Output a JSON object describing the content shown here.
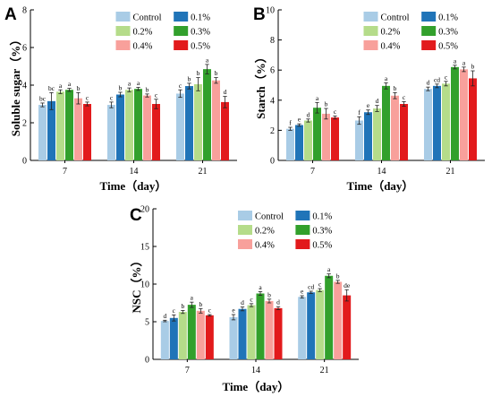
{
  "chart_data": [
    {
      "type": "bar",
      "panel": "A",
      "ylabel": "Soluble sugar（%）",
      "xlabel": "Time（day）",
      "ylim": [
        0,
        8
      ],
      "yticks": [
        "0",
        "2",
        "4",
        "6",
        "8"
      ],
      "categories": [
        "7",
        "14",
        "21"
      ],
      "series": [
        {
          "name": "Control",
          "values": [
            2.95,
            2.95,
            3.55
          ],
          "errors": [
            0.1,
            0.15,
            0.2
          ],
          "labels": [
            "bc",
            "c",
            "c"
          ]
        },
        {
          "name": "0.1%",
          "values": [
            3.15,
            3.5,
            3.95
          ],
          "errors": [
            0.45,
            0.12,
            0.15
          ],
          "labels": [
            "bc",
            "b",
            "b"
          ]
        },
        {
          "name": "0.2%",
          "values": [
            3.65,
            3.75,
            4.05
          ],
          "errors": [
            0.1,
            0.1,
            0.35
          ],
          "labels": [
            "a",
            "a",
            "b"
          ]
        },
        {
          "name": "0.3%",
          "values": [
            3.75,
            3.8,
            4.85
          ],
          "errors": [
            0.08,
            0.08,
            0.25
          ],
          "labels": [
            "a",
            "a",
            "a"
          ]
        },
        {
          "name": "0.4%",
          "values": [
            3.3,
            3.45,
            4.25
          ],
          "errors": [
            0.3,
            0.08,
            0.15
          ],
          "labels": [
            "b",
            "b",
            "b"
          ]
        },
        {
          "name": "0.5%",
          "values": [
            3.0,
            3.0,
            3.1
          ],
          "errors": [
            0.1,
            0.25,
            0.3
          ],
          "labels": [
            "c",
            "c",
            "d"
          ]
        }
      ]
    },
    {
      "type": "bar",
      "panel": "B",
      "ylabel": "Starch（%）",
      "xlabel": "Time（day）",
      "ylim": [
        0,
        10
      ],
      "yticks": [
        "0",
        "2",
        "4",
        "6",
        "8",
        "10"
      ],
      "categories": [
        "7",
        "14",
        "21"
      ],
      "series": [
        {
          "name": "Control",
          "values": [
            2.1,
            2.65,
            4.75
          ],
          "errors": [
            0.1,
            0.25,
            0.12
          ],
          "labels": [
            "f",
            "f",
            "d"
          ]
        },
        {
          "name": "0.1%",
          "values": [
            2.35,
            3.2,
            4.95
          ],
          "errors": [
            0.08,
            0.15,
            0.12
          ],
          "labels": [
            "e",
            "e",
            "cd"
          ]
        },
        {
          "name": "0.2%",
          "values": [
            2.65,
            3.45,
            5.1
          ],
          "errors": [
            0.1,
            0.2,
            0.15
          ],
          "labels": [
            "d",
            "d",
            "c"
          ]
        },
        {
          "name": "0.3%",
          "values": [
            3.5,
            4.95,
            6.2
          ],
          "errors": [
            0.35,
            0.2,
            0.12
          ],
          "labels": [
            "a",
            "a",
            "a"
          ]
        },
        {
          "name": "0.4%",
          "values": [
            3.1,
            4.3,
            6.05
          ],
          "errors": [
            0.35,
            0.2,
            0.15
          ],
          "labels": [
            "b",
            "b",
            "a"
          ]
        },
        {
          "name": "0.5%",
          "values": [
            2.85,
            3.75,
            5.45
          ],
          "errors": [
            0.1,
            0.15,
            0.5
          ],
          "labels": [
            "c",
            "c",
            "b"
          ]
        }
      ]
    },
    {
      "type": "bar",
      "panel": "C",
      "ylabel": "NSC（%）",
      "xlabel": "Time（day）",
      "ylim": [
        0,
        20
      ],
      "yticks": [
        "0",
        "5",
        "10",
        "15",
        "20"
      ],
      "categories": [
        "7",
        "14",
        "21"
      ],
      "series": [
        {
          "name": "Control",
          "values": [
            5.1,
            5.6,
            8.3
          ],
          "errors": [
            0.1,
            0.35,
            0.15
          ],
          "labels": [
            "d",
            "e",
            "e"
          ]
        },
        {
          "name": "0.1%",
          "values": [
            5.5,
            6.7,
            8.9
          ],
          "errors": [
            0.4,
            0.25,
            0.15
          ],
          "labels": [
            "c",
            "d",
            "cd"
          ]
        },
        {
          "name": "0.2%",
          "values": [
            6.3,
            7.2,
            9.2
          ],
          "errors": [
            0.2,
            0.2,
            0.2
          ],
          "labels": [
            "b",
            "c",
            "c"
          ]
        },
        {
          "name": "0.3%",
          "values": [
            7.25,
            8.75,
            11.1
          ],
          "errors": [
            0.35,
            0.25,
            0.25
          ],
          "labels": [
            "a",
            "a",
            "a"
          ]
        },
        {
          "name": "0.4%",
          "values": [
            6.45,
            7.75,
            10.3
          ],
          "errors": [
            0.3,
            0.25,
            0.2
          ],
          "labels": [
            "b",
            "b",
            "b"
          ]
        },
        {
          "name": "0.5%",
          "values": [
            5.85,
            6.8,
            8.5
          ],
          "errors": [
            0.1,
            0.2,
            0.75
          ],
          "labels": [
            "c",
            "d",
            "de"
          ]
        }
      ]
    }
  ],
  "colors": {
    "Control": "#a9cce6",
    "0.1%": "#2074b8",
    "0.2%": "#b5dc8a",
    "0.3%": "#32a02c",
    "0.4%": "#f8a09b",
    "0.5%": "#e21a1c"
  }
}
